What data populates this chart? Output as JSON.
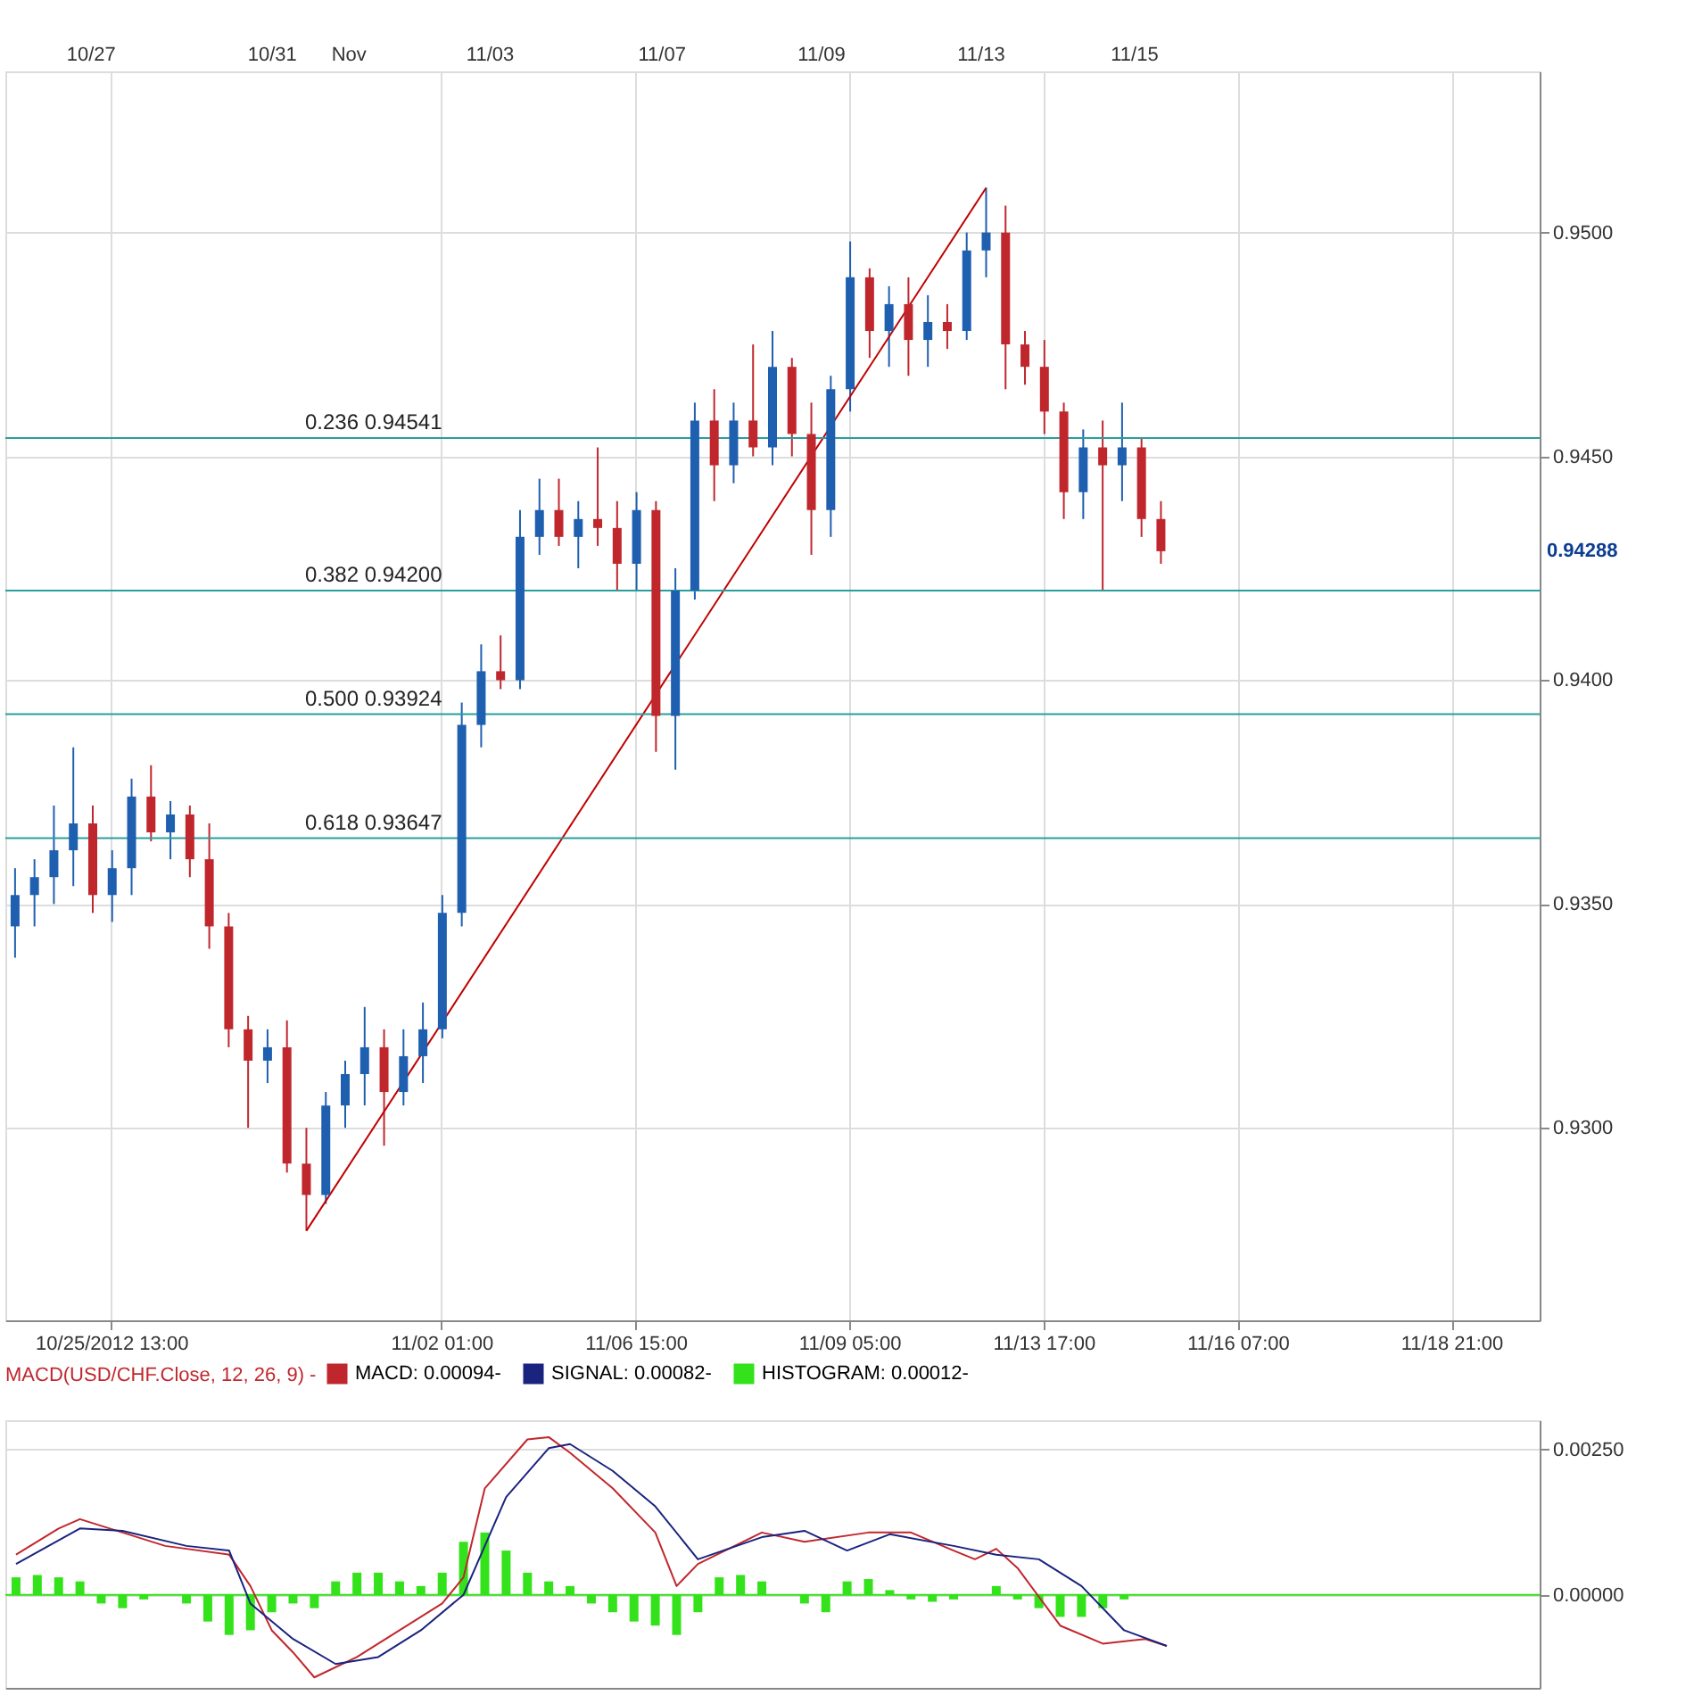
{
  "chart_data": [
    {
      "type": "candlestick",
      "categories": [
        null,
        null,
        null,
        null,
        null,
        "10/25/2012 13:00",
        null,
        null,
        null,
        null,
        null,
        null,
        null,
        null,
        null,
        null,
        null,
        null,
        null,
        null,
        null,
        null,
        "11/02 01:00",
        null,
        null,
        null,
        null,
        null,
        null,
        null,
        null,
        null,
        "11/06 15:00",
        null,
        null,
        null,
        null,
        null,
        null,
        null,
        null,
        null,
        null,
        "11/09 05:00",
        null,
        null,
        null,
        null,
        null,
        null,
        null,
        null,
        null,
        "11/13 17:00",
        null,
        null,
        null,
        null,
        null,
        null,
        null,
        null,
        null,
        "11/16 07:00",
        null,
        null,
        null,
        null,
        null,
        null,
        null,
        null,
        null,
        null,
        "11/18 21:00",
        null,
        null,
        null,
        null
      ],
      "ohlc": [
        [
          0.9345,
          0.9358,
          0.9338,
          0.9352
        ],
        [
          0.9352,
          0.936,
          0.9345,
          0.9356
        ],
        [
          0.9356,
          0.9372,
          0.935,
          0.9362
        ],
        [
          0.9362,
          0.9385,
          0.9354,
          0.9368
        ],
        [
          0.9368,
          0.9372,
          0.9348,
          0.9352
        ],
        [
          0.9352,
          0.9362,
          0.9346,
          0.9358
        ],
        [
          0.9358,
          0.9378,
          0.9352,
          0.9374
        ],
        [
          0.9374,
          0.9381,
          0.9364,
          0.9366
        ],
        [
          0.9366,
          0.9373,
          0.936,
          0.937
        ],
        [
          0.937,
          0.9372,
          0.9356,
          0.936
        ],
        [
          0.936,
          0.9368,
          0.934,
          0.9345
        ],
        [
          0.9345,
          0.9348,
          0.9318,
          0.9322
        ],
        [
          0.9322,
          0.9325,
          0.93,
          0.9315
        ],
        [
          0.9315,
          0.9322,
          0.931,
          0.9318
        ],
        [
          0.9318,
          0.9324,
          0.929,
          0.9292
        ],
        [
          0.9292,
          0.93,
          0.9277,
          0.9285
        ],
        [
          0.9285,
          0.9308,
          0.9283,
          0.9305
        ],
        [
          0.9305,
          0.9315,
          0.93,
          0.9312
        ],
        [
          0.9312,
          0.9327,
          0.9305,
          0.9318
        ],
        [
          0.9318,
          0.9322,
          0.9296,
          0.9308
        ],
        [
          0.9308,
          0.9322,
          0.9305,
          0.9316
        ],
        [
          0.9316,
          0.9328,
          0.931,
          0.9322
        ],
        [
          0.9322,
          0.9352,
          0.932,
          0.9348
        ],
        [
          0.9348,
          0.9395,
          0.9345,
          0.939
        ],
        [
          0.939,
          0.9408,
          0.9385,
          0.9402
        ],
        [
          0.9402,
          0.941,
          0.9398,
          0.94
        ],
        [
          0.94,
          0.9438,
          0.9398,
          0.9432
        ],
        [
          0.9432,
          0.9445,
          0.9428,
          0.9438
        ],
        [
          0.9438,
          0.9445,
          0.943,
          0.9432
        ],
        [
          0.9432,
          0.944,
          0.9425,
          0.9436
        ],
        [
          0.9436,
          0.9452,
          0.943,
          0.9434
        ],
        [
          0.9434,
          0.944,
          0.942,
          0.9426
        ],
        [
          0.9426,
          0.9442,
          0.942,
          0.9438
        ],
        [
          0.9438,
          0.944,
          0.9384,
          0.9392
        ],
        [
          0.9392,
          0.9425,
          0.938,
          0.942
        ],
        [
          0.942,
          0.9462,
          0.9418,
          0.9458
        ],
        [
          0.9458,
          0.9465,
          0.944,
          0.9448
        ],
        [
          0.9448,
          0.9462,
          0.9444,
          0.9458
        ],
        [
          0.9458,
          0.9475,
          0.945,
          0.9452
        ],
        [
          0.9452,
          0.9478,
          0.9448,
          0.947
        ],
        [
          0.947,
          0.9472,
          0.945,
          0.9455
        ],
        [
          0.9455,
          0.9462,
          0.9428,
          0.9438
        ],
        [
          0.9438,
          0.9468,
          0.9432,
          0.9465
        ],
        [
          0.9465,
          0.9498,
          0.946,
          0.949
        ],
        [
          0.949,
          0.9492,
          0.9472,
          0.9478
        ],
        [
          0.9478,
          0.9488,
          0.947,
          0.9484
        ],
        [
          0.9484,
          0.949,
          0.9468,
          0.9476
        ],
        [
          0.9476,
          0.9486,
          0.947,
          0.948
        ],
        [
          0.948,
          0.9484,
          0.9474,
          0.9478
        ],
        [
          0.9478,
          0.95,
          0.9476,
          0.9496
        ],
        [
          0.9496,
          0.951,
          0.949,
          0.95
        ],
        [
          0.95,
          0.9506,
          0.9465,
          0.9475
        ],
        [
          0.9475,
          0.9478,
          0.9466,
          0.947
        ],
        [
          0.947,
          0.9476,
          0.9455,
          0.946
        ],
        [
          0.946,
          0.9462,
          0.9436,
          0.9442
        ],
        [
          0.9442,
          0.9456,
          0.9436,
          0.9452
        ],
        [
          0.9452,
          0.9458,
          0.942,
          0.9448
        ],
        [
          0.9448,
          0.9462,
          0.944,
          0.9452
        ],
        [
          0.9452,
          0.9454,
          0.9432,
          0.9436
        ],
        [
          0.9436,
          0.944,
          0.9426,
          0.94288
        ],
        null,
        null,
        null,
        null,
        null,
        null,
        null,
        null,
        null,
        null,
        null,
        null,
        null,
        null,
        null,
        null,
        null,
        null,
        null
      ],
      "colors": [
        "#1f5fb0",
        "#1f5fb0",
        "#1f5fb0",
        "#1f5fb0",
        "#c0272d",
        "#1f5fb0",
        "#1f5fb0",
        "#c0272d",
        "#1f5fb0",
        "#c0272d",
        "#c0272d",
        "#c0272d",
        "#c0272d",
        "#1f5fb0",
        "#c0272d",
        "#c0272d",
        "#1f5fb0",
        "#1f5fb0",
        "#1f5fb0",
        "#c0272d",
        "#1f5fb0",
        "#1f5fb0",
        "#1f5fb0",
        "#1f5fb0",
        "#1f5fb0",
        "#c0272d",
        "#1f5fb0",
        "#1f5fb0",
        "#c0272d",
        "#1f5fb0",
        "#c0272d",
        "#c0272d",
        "#1f5fb0",
        "#c0272d",
        "#1f5fb0",
        "#1f5fb0",
        "#c0272d",
        "#1f5fb0",
        "#c0272d",
        "#1f5fb0",
        "#c0272d",
        "#c0272d",
        "#1f5fb0",
        "#1f5fb0",
        "#c0272d",
        "#1f5fb0",
        "#c0272d",
        "#1f5fb0",
        "#c0272d",
        "#1f5fb0",
        "#1f5fb0",
        "#c0272d",
        "#c0272d",
        "#c0272d",
        "#c0272d",
        "#1f5fb0",
        "#c0272d",
        "#1f5fb0",
        "#c0272d",
        "#c0272d",
        null,
        null,
        null,
        null,
        null,
        null,
        null,
        null,
        null,
        null,
        null,
        null,
        null,
        null,
        null,
        null,
        null,
        null,
        null
      ],
      "series": [
        {
          "type": "line",
          "color": "#c00000",
          "values": [
            null,
            null,
            null,
            null,
            null,
            null,
            null,
            null,
            null,
            null,
            null,
            null,
            null,
            null,
            null,
            0.9277,
            null,
            null,
            null,
            null,
            null,
            null,
            null,
            null,
            null,
            null,
            null,
            null,
            null,
            null,
            null,
            null,
            null,
            null,
            null,
            null,
            null,
            null,
            null,
            null,
            null,
            null,
            null,
            null,
            null,
            null,
            null,
            null,
            null,
            null,
            0.951,
            null,
            null,
            null,
            null,
            null,
            null,
            null,
            null,
            null,
            null,
            null,
            null,
            null,
            null,
            null,
            null,
            null,
            null,
            null,
            null,
            null,
            null,
            null,
            null,
            null,
            null,
            null,
            null
          ]
        }
      ],
      "ylim": [
        0.9257,
        0.9536
      ],
      "yticks": [
        {
          "value": 0.93,
          "label": "0.9300"
        },
        {
          "value": 0.935,
          "label": "0.9350"
        },
        {
          "value": 0.94,
          "label": "0.9400"
        },
        {
          "value": 0.945,
          "label": "0.9450"
        },
        {
          "value": 0.95,
          "label": "0.9500"
        }
      ],
      "grid": true,
      "ref_lines": [
        {
          "axis": "y",
          "value": 0.94541,
          "label": "0.236 0.94541",
          "color": "#2a9d9d"
        },
        {
          "axis": "y",
          "value": 0.942,
          "label": "0.382 0.94200",
          "color": "#2a9d9d"
        },
        {
          "axis": "y",
          "value": 0.93924,
          "label": "0.500 0.93924",
          "color": "#2a9d9d"
        },
        {
          "axis": "y",
          "value": 0.93647,
          "label": "0.618 0.93647",
          "color": "#2a9d9d"
        }
      ],
      "annotations": [
        "10/27",
        "10/31",
        "Nov",
        "11/03",
        "11/07",
        "11/09",
        "11/13",
        "11/15",
        "0.94288"
      ]
    },
    {
      "type": "line",
      "categories": [
        null,
        null,
        null,
        null,
        null,
        null,
        null,
        null,
        null,
        null,
        null,
        null,
        null,
        null,
        null,
        null,
        null,
        null,
        null,
        null,
        null,
        null,
        null,
        null,
        null,
        null,
        null,
        null,
        null,
        null,
        null,
        null,
        null,
        null,
        null,
        null,
        null,
        null,
        null,
        null,
        null,
        null,
        null,
        null,
        null,
        null,
        null,
        null,
        null,
        null,
        null,
        null,
        null,
        null,
        null,
        null,
        null,
        null,
        null,
        null,
        null,
        null,
        null,
        null,
        null,
        null,
        null,
        null,
        null,
        null,
        null,
        null
      ],
      "legend_title": "MACD(USD/CHF.Close, 12, 26, 9) -",
      "legend": "top",
      "series": [
        {
          "name": "MACD: 0.00094-",
          "color": "#c0272d",
          "values": [
            0.00069,
            null,
            0.00114,
            0.0013,
            null,
            0.00107,
            null,
            0.00084,
            null,
            null,
            0.00069,
            0.00015,
            -0.00061,
            -0.00099,
            -0.00142,
            null,
            -0.00107,
            null,
            -0.00061,
            null,
            -0.00015,
            0.0003,
            0.00183,
            null,
            0.00267,
            0.00271,
            0.00244,
            null,
            0.00183,
            null,
            0.00107,
            0.00015,
            0.00053,
            null,
            null,
            0.00107,
            null,
            0.00091,
            null,
            null,
            0.00107,
            null,
            0.00107,
            null,
            0.00076,
            0.00061,
            0.00079,
            0.00046,
            null,
            -0.00053,
            null,
            -0.00084,
            null,
            -0.00076,
            -0.00088,
            null,
            null,
            null,
            null,
            null,
            null,
            null,
            null,
            null,
            null,
            null,
            null,
            null,
            null,
            null,
            null,
            null
          ]
        },
        {
          "name": "SIGNAL: 0.00082-",
          "color": "#1a237e",
          "values": [
            0.00053,
            null,
            null,
            0.00114,
            null,
            0.0011,
            null,
            null,
            0.00084,
            null,
            0.00076,
            -0.00015,
            null,
            -0.00076,
            null,
            -0.00119,
            null,
            -0.00107,
            null,
            -0.00061,
            null,
            0,
            null,
            0.00168,
            null,
            0.00252,
            0.00259,
            null,
            0.00213,
            null,
            0.00152,
            null,
            0.00061,
            null,
            null,
            0.00099,
            null,
            0.0011,
            null,
            0.00076,
            null,
            0.00104,
            null,
            null,
            0.00084,
            null,
            0.00069,
            null,
            0.00061,
            null,
            0.00015,
            null,
            -0.00061,
            null,
            -0.00088,
            null,
            null,
            null,
            null,
            null,
            null,
            null,
            null,
            null,
            null,
            null,
            null,
            null,
            null,
            null,
            null,
            null
          ]
        },
        {
          "name": "HISTOGRAM: 0.00012-",
          "type": "bar",
          "color": "#33e21a",
          "values": [
            0.0003,
            0.00034,
            0.0003,
            0.00023,
            -0.00015,
            -0.00023,
            -8e-05,
            0,
            -0.00015,
            -0.00046,
            -0.00069,
            -0.00061,
            -0.0003,
            -0.00015,
            -0.00023,
            0.00023,
            0.00038,
            0.00038,
            0.00023,
            0.00015,
            0.00038,
            0.00091,
            0.00107,
            0.00076,
            0.00038,
            0.00023,
            0.00015,
            -0.00015,
            -0.0003,
            -0.00046,
            -0.00053,
            -0.00069,
            -0.0003,
            0.0003,
            0.00034,
            0.00023,
            0,
            -0.00015,
            -0.0003,
            0.00023,
            0.00027,
            8e-05,
            -8e-05,
            -0.00012,
            -8e-05,
            null,
            0.00015,
            -8e-05,
            -0.00023,
            -0.00038,
            -0.00038,
            -0.00023,
            -8e-05,
            0,
            null,
            null,
            null,
            null,
            null,
            null,
            null,
            null,
            null,
            null,
            null,
            null,
            null,
            null,
            null,
            null,
            null,
            null
          ]
        }
      ],
      "ylim": [
        -0.0016,
        0.003
      ],
      "yticks": [
        {
          "value": 0,
          "label": "0.00000"
        },
        {
          "value": 0.0025,
          "label": "0.00250"
        }
      ],
      "ref_lines": [
        {
          "axis": "y",
          "value": 0,
          "color": "#33e21a"
        }
      ],
      "grid": true,
      "tick_labels": "y"
    }
  ]
}
